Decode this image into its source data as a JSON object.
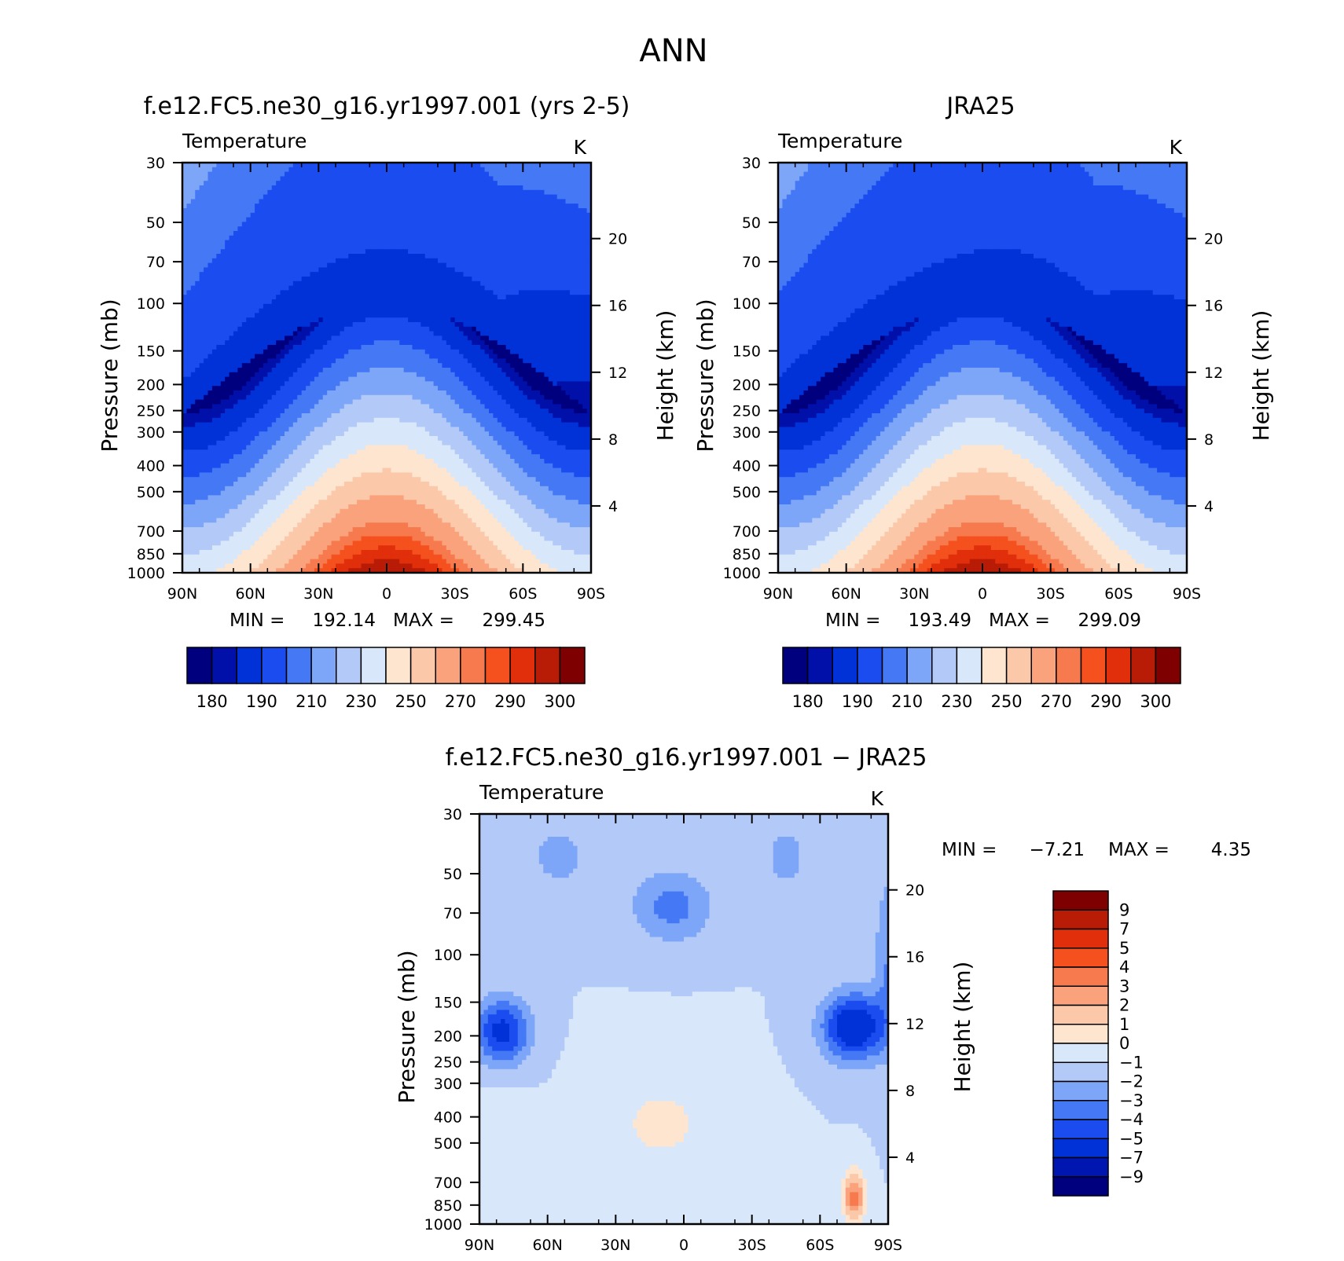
{
  "figure_title": "ANN",
  "colors": {
    "abs_levels": [
      "#00007f",
      "#0010a8",
      "#0032d8",
      "#1a4cf0",
      "#4578f5",
      "#7da6f8",
      "#b3caf8",
      "#d8e8fa",
      "#fde5d0",
      "#fbc8aa",
      "#f9a27c",
      "#f77a4e",
      "#f4511f",
      "#e02f0a",
      "#b81b06",
      "#7f0000"
    ],
    "diff_levels": [
      "#00007f",
      "#0016b0",
      "#0032d8",
      "#1a4cf0",
      "#4578f5",
      "#7da6f8",
      "#b3caf8",
      "#d8e8fa",
      "#fde5d0",
      "#fbc8aa",
      "#f9a27c",
      "#f77a4e",
      "#f4511f",
      "#e02f0a",
      "#b81b06",
      "#7f0000"
    ]
  },
  "chart_data": [
    {
      "type": "heatmap",
      "title": "f.e12.FC5.ne30_g16.yr1997.001 (yrs 2-5)",
      "variable": "Temperature",
      "units": "K",
      "xlabel": "",
      "ylabel": "Pressure (mb)",
      "ylabel_right": "Height (km)",
      "x_ticks": [
        "90N",
        "60N",
        "30N",
        "0",
        "30S",
        "60S",
        "90S"
      ],
      "y_ticks": [
        "30",
        "50",
        "70",
        "100",
        "150",
        "200",
        "250",
        "300",
        "400",
        "500",
        "700",
        "850",
        "1000"
      ],
      "y_right_ticks": [
        "20",
        "16",
        "12",
        "8",
        "4"
      ],
      "y_scale": "log",
      "min_label": "MIN =",
      "min": "192.14",
      "max_label": "MAX =",
      "max": "299.45",
      "colorbar_labels": [
        "180",
        "190",
        "210",
        "230",
        "250",
        "270",
        "290",
        "300"
      ],
      "field": "abs"
    },
    {
      "type": "heatmap",
      "title": "JRA25",
      "variable": "Temperature",
      "units": "K",
      "xlabel": "",
      "ylabel": "Pressure (mb)",
      "ylabel_right": "Height (km)",
      "x_ticks": [
        "90N",
        "60N",
        "30N",
        "0",
        "30S",
        "60S",
        "90S"
      ],
      "y_ticks": [
        "30",
        "50",
        "70",
        "100",
        "150",
        "200",
        "250",
        "300",
        "400",
        "500",
        "700",
        "850",
        "1000"
      ],
      "y_right_ticks": [
        "20",
        "16",
        "12",
        "8",
        "4"
      ],
      "y_scale": "log",
      "min_label": "MIN =",
      "min": "193.49",
      "max_label": "MAX =",
      "max": "299.09",
      "colorbar_labels": [
        "180",
        "190",
        "210",
        "230",
        "250",
        "270",
        "290",
        "300"
      ],
      "field": "obs"
    },
    {
      "type": "heatmap",
      "title": "f.e12.FC5.ne30_g16.yr1997.001 − JRA25",
      "variable": "Temperature",
      "units": "K",
      "xlabel": "",
      "ylabel": "Pressure (mb)",
      "ylabel_right": "Height (km)",
      "x_ticks": [
        "90N",
        "60N",
        "30N",
        "0",
        "30S",
        "60S",
        "90S"
      ],
      "y_ticks": [
        "30",
        "50",
        "70",
        "100",
        "150",
        "200",
        "250",
        "300",
        "400",
        "500",
        "700",
        "850",
        "1000"
      ],
      "y_right_ticks": [
        "20",
        "16",
        "12",
        "8",
        "4"
      ],
      "y_scale": "log",
      "min_label": "MIN =",
      "min": "−7.21",
      "max_label": "MAX =",
      "max": "4.35",
      "colorbar_labels": [
        "9",
        "7",
        "5",
        "4",
        "3",
        "2",
        "1",
        "0",
        "−1",
        "−2",
        "−3",
        "−4",
        "−5",
        "−7",
        "−9"
      ],
      "field": "diff"
    }
  ]
}
